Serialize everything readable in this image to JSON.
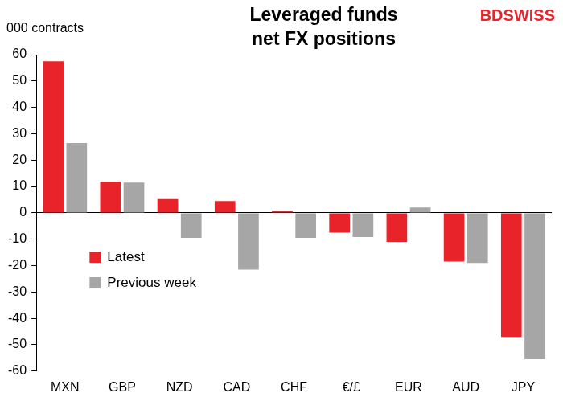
{
  "chart_data": {
    "type": "bar",
    "title": "Leveraged funds\nnet FX positions",
    "y_label": "000 contracts",
    "logo": "BDSWISS",
    "categories": [
      "MXN",
      "GBP",
      "NZD",
      "CAD",
      "CHF",
      "€/£",
      "EUR",
      "AUD",
      "JPY"
    ],
    "series": [
      {
        "name": "Latest",
        "color": "#e8242a",
        "values": [
          57.5,
          11.8,
          5.2,
          4.5,
          0.7,
          -7.5,
          -11,
          -18.5,
          -47
        ]
      },
      {
        "name": "Previous week",
        "color": "#a6a6a6",
        "values": [
          26.5,
          11.5,
          -9.5,
          -21.5,
          -9.5,
          -9.2,
          2,
          -19,
          -55.5
        ]
      }
    ],
    "ylim": [
      -60,
      60
    ],
    "yticks": [
      -60,
      -50,
      -40,
      -30,
      -20,
      -10,
      0,
      10,
      20,
      30,
      40,
      50,
      60
    ],
    "grid": false,
    "legend": "left"
  }
}
